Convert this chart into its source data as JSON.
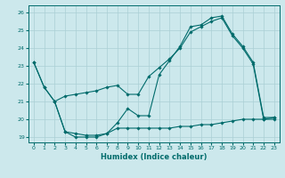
{
  "title": "",
  "xlabel": "Humidex (Indice chaleur)",
  "bg_color": "#cce8ec",
  "line_color": "#006b6b",
  "grid_color": "#aacfd4",
  "ylim": [
    18.7,
    26.4
  ],
  "xlim": [
    -0.5,
    23.5
  ],
  "yticks": [
    19,
    20,
    21,
    22,
    23,
    24,
    25,
    26
  ],
  "xticks": [
    0,
    1,
    2,
    3,
    4,
    5,
    6,
    7,
    8,
    9,
    10,
    11,
    12,
    13,
    14,
    15,
    16,
    17,
    18,
    19,
    20,
    21,
    22,
    23
  ],
  "line1_x": [
    0,
    1,
    2,
    3,
    4,
    5,
    6,
    7,
    8,
    9,
    10,
    11,
    12,
    13,
    14,
    15,
    16,
    17,
    18,
    19,
    20,
    21,
    22,
    23
  ],
  "line1_y": [
    23.2,
    21.8,
    21.0,
    19.3,
    19.0,
    19.0,
    19.0,
    19.2,
    19.8,
    20.6,
    20.2,
    20.2,
    22.5,
    23.3,
    24.1,
    25.2,
    25.3,
    25.7,
    25.8,
    24.8,
    24.1,
    23.2,
    20.1,
    20.1
  ],
  "line2_x": [
    0,
    1,
    2,
    3,
    4,
    5,
    6,
    7,
    8,
    9,
    10,
    11,
    12,
    13,
    14,
    15,
    16,
    17,
    18,
    19,
    20,
    21,
    22,
    23
  ],
  "line2_y": [
    23.2,
    21.8,
    21.0,
    21.3,
    21.4,
    21.5,
    21.6,
    21.8,
    21.9,
    21.4,
    21.4,
    22.4,
    22.9,
    23.4,
    24.0,
    24.9,
    25.2,
    25.5,
    25.7,
    24.7,
    24.0,
    23.1,
    20.0,
    20.0
  ],
  "line3_x": [
    2,
    3,
    4,
    5,
    6,
    7,
    8,
    9,
    10,
    11,
    12,
    13,
    14,
    15,
    16,
    17,
    18,
    19,
    20,
    21,
    22,
    23
  ],
  "line3_y": [
    21.0,
    19.3,
    19.2,
    19.1,
    19.1,
    19.2,
    19.5,
    19.5,
    19.5,
    19.5,
    19.5,
    19.5,
    19.6,
    19.6,
    19.7,
    19.7,
    19.8,
    19.9,
    20.0,
    20.0,
    20.0,
    20.1
  ]
}
